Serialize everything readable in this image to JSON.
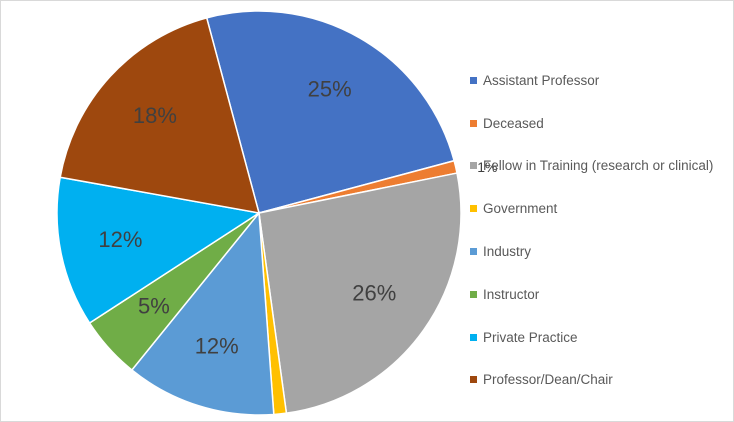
{
  "chart_data": {
    "type": "pie",
    "title": "",
    "categories": [
      "Assistant Professor",
      "Deceased",
      "Fellow in Training (research or clinical)",
      "Government",
      "Industry",
      "Instructor",
      "Private Practice",
      "Professor/Dean/Chair"
    ],
    "values": [
      25,
      1,
      26,
      1,
      12,
      5,
      12,
      18
    ],
    "data_labels": [
      "25%",
      "1%",
      "26%",
      "1%",
      "12%",
      "5%",
      "12%",
      "18%"
    ],
    "colors": [
      "#4472C4",
      "#ED7D31",
      "#A5A5A5",
      "#FFC000",
      "#5B9BD5",
      "#70AD47",
      "#00B0F0",
      "#9E480E"
    ],
    "legend_position": "right"
  }
}
